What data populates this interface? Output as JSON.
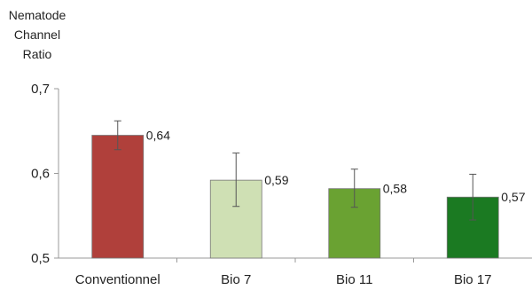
{
  "chart_data": {
    "type": "bar",
    "ylabel": "Nematode Channel Ratio",
    "ylabel_lines": [
      "Nematode",
      "Channel",
      "Ratio"
    ],
    "categories": [
      "Conventionnel",
      "Bio 7",
      "Bio 11",
      "Bio 17"
    ],
    "values": [
      0.645,
      0.592,
      0.582,
      0.572
    ],
    "data_labels": [
      "0,64",
      "0,59",
      "0,58",
      "0,57"
    ],
    "error_low": [
      0.628,
      0.561,
      0.56,
      0.545
    ],
    "error_high": [
      0.662,
      0.624,
      0.605,
      0.599
    ],
    "colors": [
      "#b0403b",
      "#cfe0b4",
      "#6aa232",
      "#1b7a22"
    ],
    "ylim": [
      0.5,
      0.7
    ],
    "yticks": [
      0.5,
      0.6,
      0.7
    ],
    "ytick_labels": [
      "0,5",
      "0,6",
      "0,7"
    ],
    "grid": false,
    "legend": "none"
  }
}
